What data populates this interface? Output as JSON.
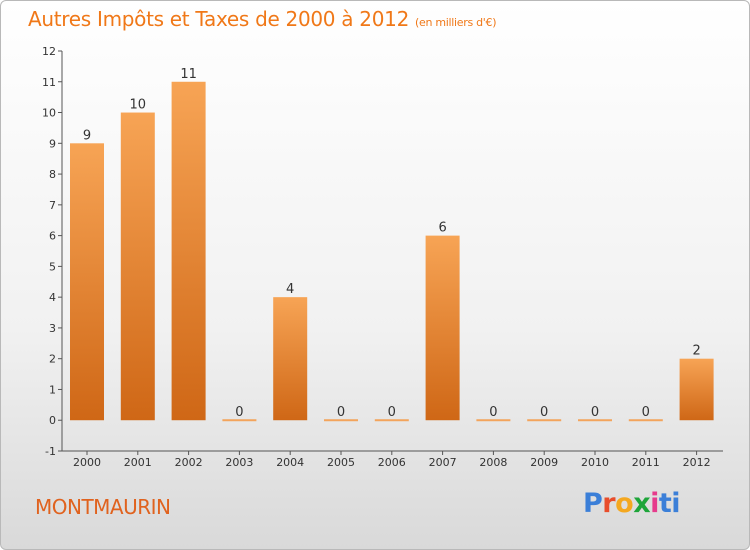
{
  "chart_data": {
    "type": "bar",
    "title": "Autres Impôts et Taxes de 2000 à 2012",
    "subtitle": "(en milliers d'€)",
    "categories": [
      "2000",
      "2001",
      "2002",
      "2003",
      "2004",
      "2005",
      "2006",
      "2007",
      "2008",
      "2009",
      "2010",
      "2011",
      "2012"
    ],
    "values": [
      9,
      10,
      11,
      0,
      4,
      0,
      0,
      6,
      0,
      0,
      0,
      0,
      2
    ],
    "data_labels": [
      "9",
      "10",
      "11",
      "0",
      "4",
      "0",
      "0",
      "6",
      "0",
      "0",
      "0",
      "0",
      "2"
    ],
    "ylim": [
      -1,
      12
    ],
    "yticks": [
      -1,
      0,
      1,
      2,
      3,
      4,
      5,
      6,
      7,
      8,
      9,
      10,
      11,
      12
    ],
    "ytick_labels": [
      "-1",
      "0",
      "1",
      "2",
      "3",
      "4",
      "5",
      "6",
      "7",
      "8",
      "9",
      "10",
      "11",
      "12"
    ],
    "grid": false,
    "legend": "none",
    "colors": {
      "bar_light": "#f7a455",
      "bar_dark": "#cf6716",
      "zero_bar": "#f3a45c",
      "axis": "#555555"
    }
  },
  "footer": {
    "commune": "MONTMAURIN",
    "logo": [
      "P",
      "r",
      "o",
      "x",
      "i",
      "ti"
    ]
  }
}
